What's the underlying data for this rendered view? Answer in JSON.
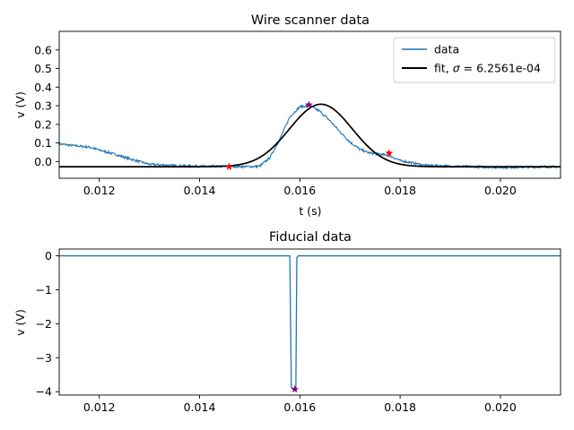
{
  "chart_data": [
    {
      "type": "line",
      "title": "Wire scanner data",
      "xlabel": "t (s)",
      "ylabel": "v (V)",
      "xlim": [
        0.0112,
        0.0212
      ],
      "ylim": [
        -0.09,
        0.7
      ],
      "xticks": [
        0.012,
        0.014,
        0.016,
        0.018,
        0.02
      ],
      "xtick_labels": [
        "0.012",
        "0.014",
        "0.016",
        "0.018",
        "0.020"
      ],
      "yticks": [
        0.0,
        0.1,
        0.2,
        0.3,
        0.4,
        0.5,
        0.6
      ],
      "ytick_labels": [
        "0.0",
        "0.1",
        "0.2",
        "0.3",
        "0.4",
        "0.5",
        "0.6"
      ],
      "legend_position": "upper right",
      "series": [
        {
          "name": "data",
          "color": "#1f77b4",
          "style": "noisy line",
          "x": [
            0.0112,
            0.0115,
            0.0118,
            0.012,
            0.0123,
            0.0126,
            0.013,
            0.0135,
            0.014,
            0.0145,
            0.015,
            0.0152,
            0.0154,
            0.0156,
            0.0158,
            0.016,
            0.0162,
            0.0164,
            0.0166,
            0.0168,
            0.017,
            0.0172,
            0.0174,
            0.0176,
            0.0178,
            0.018,
            0.0185,
            0.019,
            0.0195,
            0.02,
            0.0205,
            0.021,
            0.0212
          ],
          "y": [
            0.095,
            0.085,
            0.078,
            0.062,
            0.04,
            0.015,
            -0.015,
            -0.022,
            -0.025,
            -0.026,
            -0.028,
            -0.025,
            0.02,
            0.12,
            0.24,
            0.295,
            0.3,
            0.27,
            0.22,
            0.16,
            0.105,
            0.065,
            0.045,
            0.04,
            0.03,
            0.005,
            -0.02,
            -0.025,
            -0.028,
            -0.032,
            -0.03,
            -0.028,
            -0.03
          ]
        },
        {
          "name": "fit, σ = 6.2561e-04",
          "name_prefix": "fit, ",
          "name_sigma": "σ",
          "name_value": " = 6.2561e-04",
          "color": "#000000",
          "style": "gaussian",
          "offset": -0.028,
          "amplitude": 0.336,
          "center": 0.01642,
          "sigma": 0.00062561
        }
      ],
      "markers": [
        {
          "x": 0.01459,
          "y": -0.028,
          "color": "#ff0000"
        },
        {
          "x": 0.01618,
          "y": 0.305,
          "color": "#800080"
        },
        {
          "x": 0.01778,
          "y": 0.045,
          "color": "#ff0000"
        }
      ]
    },
    {
      "type": "line",
      "title": "Fiducial data",
      "xlabel": "",
      "ylabel": "v (V)",
      "xlim": [
        0.0112,
        0.0212
      ],
      "ylim": [
        -4.1,
        0.2
      ],
      "xticks": [
        0.012,
        0.014,
        0.016,
        0.018,
        0.02
      ],
      "xtick_labels": [
        "0.012",
        "0.014",
        "0.016",
        "0.018",
        "0.020"
      ],
      "yticks": [
        0,
        -1,
        -2,
        -3,
        -4
      ],
      "ytick_labels": [
        "0",
        "−1",
        "−2",
        "−3",
        "−4"
      ],
      "series": [
        {
          "name": "",
          "color": "#1f77b4",
          "x": [
            0.0112,
            0.0158,
            0.01583,
            0.01586,
            0.01589,
            0.01592,
            0.01594,
            0.01597,
            0.0212
          ],
          "y": [
            0.0,
            0.0,
            -3.85,
            -3.92,
            -3.92,
            -3.88,
            -0.05,
            0.0,
            0.0
          ]
        }
      ],
      "markers": [
        {
          "x": 0.0159,
          "y": -3.93,
          "color": "#800080"
        }
      ]
    }
  ]
}
